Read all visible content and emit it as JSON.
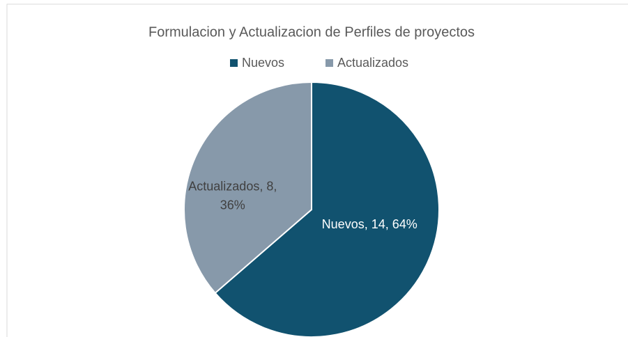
{
  "chart_data": {
    "type": "pie",
    "title": "Formulacion y Actualizacion de Perfiles de proyectos",
    "categories": [
      "Nuevos",
      "Actualizados"
    ],
    "values": [
      14,
      8
    ],
    "value_labels": [
      "Nuevos, 14, 64%",
      "Actualizados, 8, 36%"
    ],
    "colors": [
      "#11526f",
      "#8799aa"
    ],
    "legend": "top"
  }
}
